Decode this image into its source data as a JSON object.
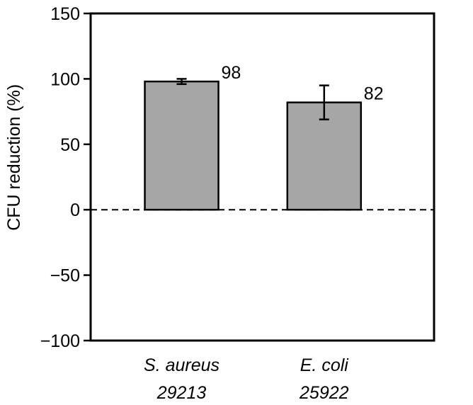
{
  "chart_data": {
    "type": "bar",
    "title": "",
    "ylabel": "CFU reduction (%)",
    "xlabel": "",
    "ylim": [
      -100,
      150
    ],
    "yticks": [
      150,
      100,
      50,
      0,
      -50,
      -100
    ],
    "ytick_labels": [
      "150",
      "100",
      "50",
      "0",
      "−50",
      "−100"
    ],
    "categories": [
      {
        "line1": "S. aureus",
        "line2": "29213"
      },
      {
        "line1": "E. coli",
        "line2": "25922"
      }
    ],
    "values": [
      98,
      82
    ],
    "value_labels": [
      "98",
      "82"
    ],
    "error_bars": [
      {
        "low": 96,
        "high": 100
      },
      {
        "low": 69,
        "high": 95
      }
    ],
    "zero_line": "dashed",
    "grid": false,
    "legend": "none",
    "colors": {
      "bar_fill": "#a6a6a6",
      "bar_stroke": "#000000",
      "axis": "#000000"
    }
  }
}
